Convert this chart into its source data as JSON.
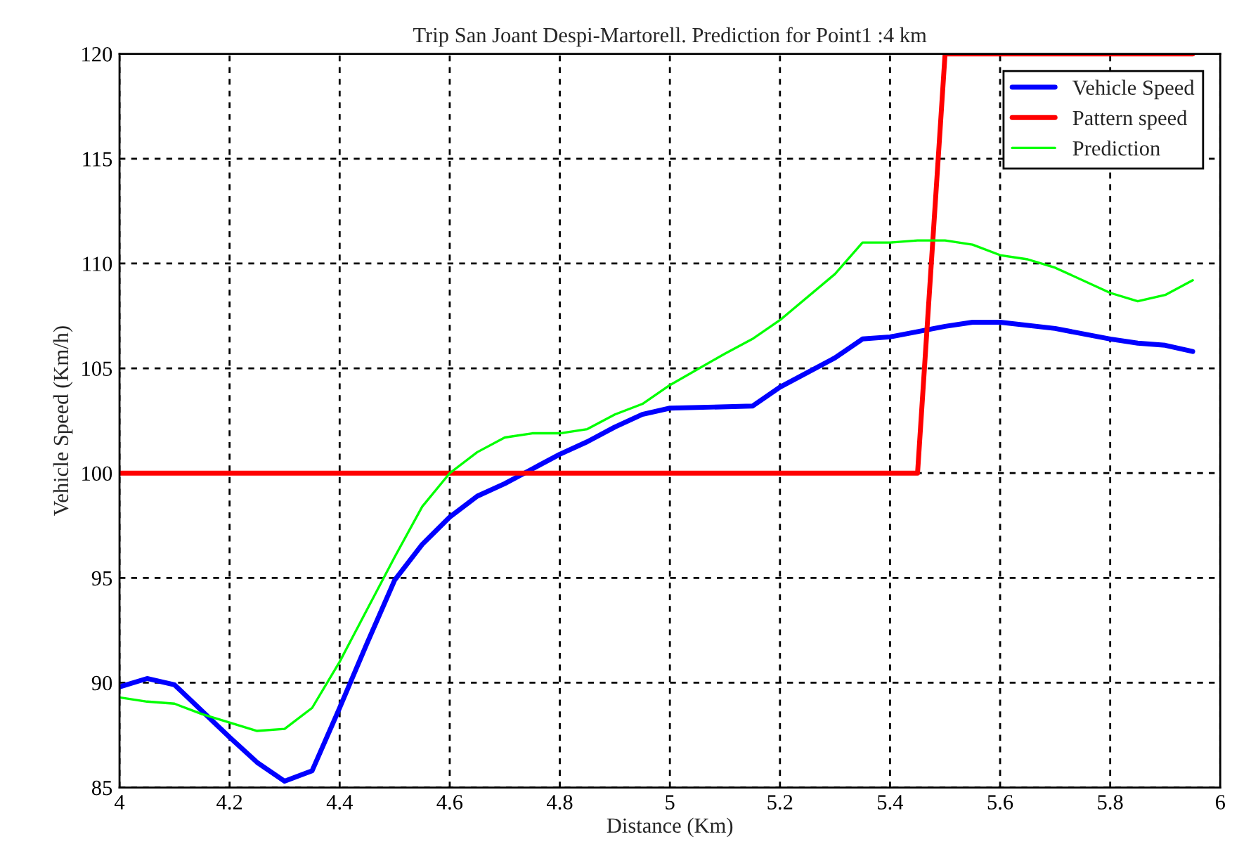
{
  "chart_data": {
    "type": "line",
    "title": "Trip San Joant Despi-Martorell. Prediction for Point1 :4 km",
    "xlabel": "Distance (Km)",
    "ylabel": "Vehicle Speed (Km/h)",
    "xlim": [
      4,
      6
    ],
    "xticks": [
      4,
      4.2,
      4.4,
      4.6,
      4.8,
      5,
      5.2,
      5.4,
      5.6,
      5.8,
      6
    ],
    "ylim": [
      85,
      120
    ],
    "yticks": [
      85,
      90,
      95,
      100,
      105,
      110,
      115,
      120
    ],
    "grid": true,
    "legend": "top right",
    "line_style": "solid",
    "marker": "none",
    "series": [
      {
        "name": "Vehicle Speed",
        "color": "#0000ff",
        "x": [
          4,
          4.05,
          4.1,
          4.2,
          4.25,
          4.3,
          4.35,
          4.4,
          4.45,
          4.5,
          4.55,
          4.6,
          4.65,
          4.7,
          4.75,
          4.8,
          4.85,
          4.9,
          4.95,
          5.0,
          5.15,
          5.2,
          5.3,
          5.35,
          5.4,
          5.5,
          5.55,
          5.6,
          5.7,
          5.8,
          5.85,
          5.9,
          5.95
        ],
        "values": [
          89.8,
          90.2,
          89.9,
          87.4,
          86.2,
          85.3,
          85.8,
          88.8,
          91.9,
          94.9,
          96.6,
          97.9,
          98.9,
          99.5,
          100.2,
          100.9,
          101.5,
          102.2,
          102.8,
          103.1,
          103.2,
          104.1,
          105.5,
          106.4,
          106.5,
          107.0,
          107.2,
          107.2,
          106.9,
          106.4,
          106.2,
          106.1,
          105.8
        ]
      },
      {
        "name": "Pattern speed",
        "color": "#ff0000",
        "x": [
          4,
          5.45,
          5.5,
          5.95
        ],
        "values": [
          100,
          100,
          120,
          120
        ]
      },
      {
        "name": "Prediction",
        "color": "#00ff00",
        "x": [
          4,
          4.05,
          4.1,
          4.15,
          4.2,
          4.25,
          4.3,
          4.35,
          4.4,
          4.45,
          4.5,
          4.55,
          4.6,
          4.65,
          4.7,
          4.75,
          4.8,
          4.85,
          4.9,
          4.95,
          5.0,
          5.1,
          5.15,
          5.2,
          5.3,
          5.35,
          5.4,
          5.45,
          5.5,
          5.55,
          5.6,
          5.65,
          5.7,
          5.8,
          5.85,
          5.9,
          5.95
        ],
        "values": [
          89.3,
          89.1,
          89.0,
          88.5,
          88.1,
          87.7,
          87.8,
          88.8,
          91.0,
          93.5,
          96.0,
          98.4,
          100.0,
          101.0,
          101.7,
          101.9,
          101.9,
          102.1,
          102.8,
          103.3,
          104.2,
          105.7,
          106.4,
          107.3,
          109.5,
          111.0,
          111.0,
          111.1,
          111.1,
          110.9,
          110.4,
          110.2,
          109.8,
          108.6,
          108.2,
          108.5,
          109.2
        ]
      }
    ]
  }
}
